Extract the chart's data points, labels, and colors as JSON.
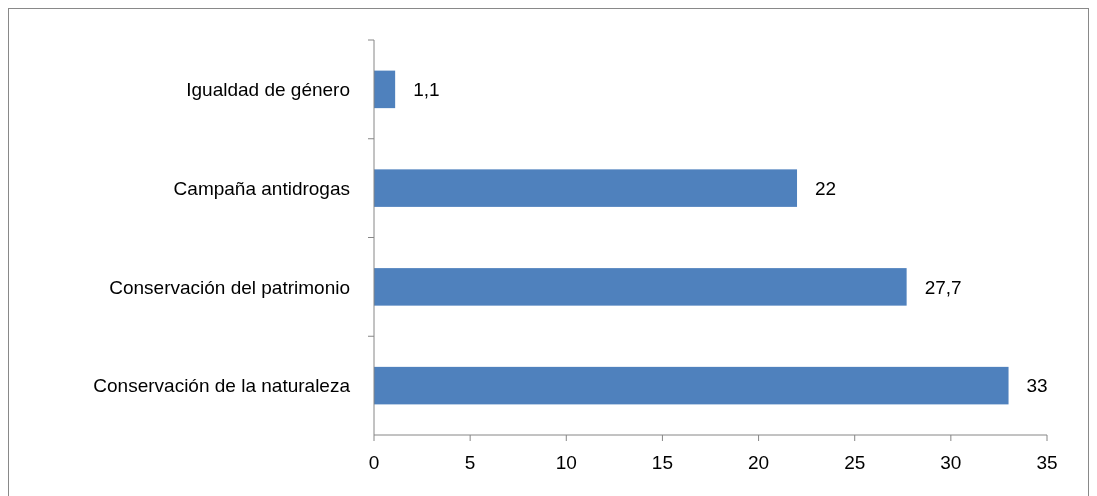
{
  "chart_data": {
    "type": "bar",
    "orientation": "horizontal",
    "categories": [
      "Igualdad de género",
      "Campaña antidrogas",
      "Conservación del patrimonio",
      "Conservación de la naturaleza"
    ],
    "values": [
      1.1,
      22,
      27.7,
      33
    ],
    "value_labels": [
      "1,1",
      "22",
      "27,7",
      "33"
    ],
    "color": "#4f81bd",
    "xlim": [
      0,
      35
    ],
    "xticks": [
      0,
      5,
      10,
      15,
      20,
      25,
      30,
      35
    ],
    "grid": false
  }
}
